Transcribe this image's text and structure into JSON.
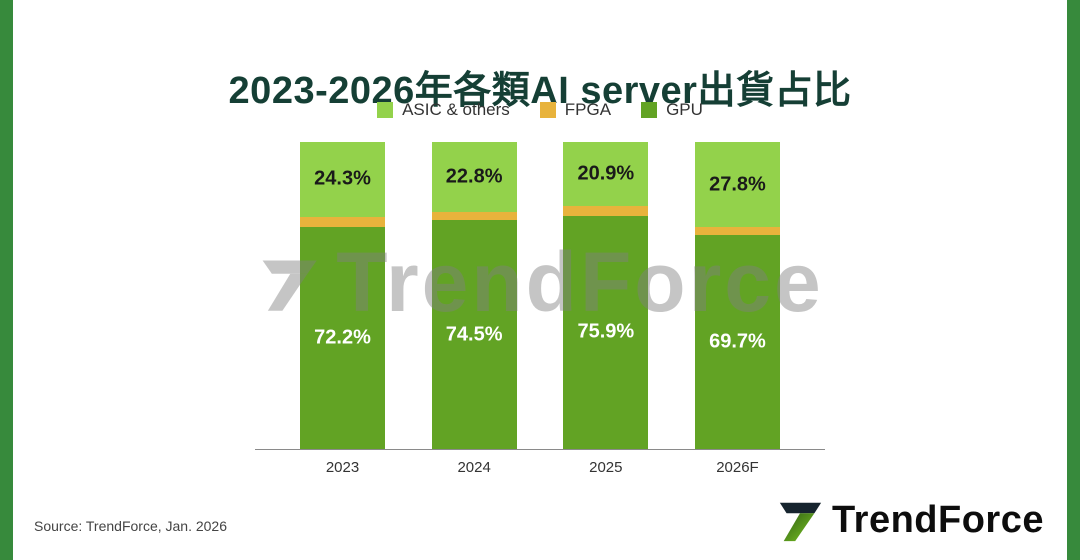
{
  "header": {
    "title": "2023-2026年各類AI server出貨占比"
  },
  "watermark": {
    "text": "TrendForce"
  },
  "footer": {
    "source": "Source: TrendForce, Jan. 2026",
    "logo_text": "TrendForce"
  },
  "colors": {
    "edge_green": "#378A3C",
    "title_green": "#153F35",
    "asic_green": "#93D24B",
    "fpga_gold": "#E8B33C",
    "gpu_green": "#62A324",
    "axis_gray": "#8a8a8a"
  },
  "chart_data": {
    "type": "bar",
    "stacked": true,
    "title": "2023-2026年各類AI server出貨占比",
    "categories": [
      "2023",
      "2024",
      "2025",
      "2026F"
    ],
    "series": [
      {
        "name": "ASIC & others",
        "color": "#93D24B",
        "label_color": "#1a1a1a",
        "values": [
          24.3,
          22.8,
          20.9,
          27.8
        ]
      },
      {
        "name": "FPGA",
        "color": "#E8B33C",
        "label_color": "#E8B33C",
        "values": [
          3.5,
          2.7,
          3.2,
          2.5
        ]
      },
      {
        "name": "GPU",
        "color": "#62A324",
        "label_color": "#ffffff",
        "values": [
          72.2,
          74.5,
          75.9,
          69.7
        ]
      }
    ],
    "value_suffix": "%",
    "legend_position": "top",
    "ylim": [
      0,
      100
    ],
    "xlabel": "",
    "ylabel": ""
  }
}
